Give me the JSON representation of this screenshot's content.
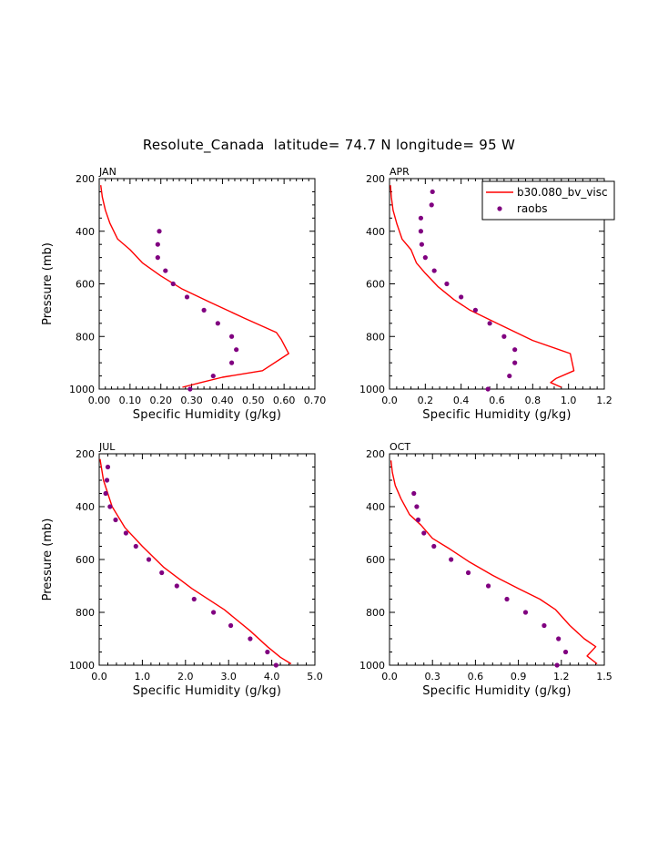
{
  "title": "Resolute_Canada  latitude= 74.7 N longitude= 95 W",
  "colors": {
    "model": "#ff0000",
    "obs": "#800080",
    "axis": "#000000"
  },
  "chart_data": [
    {
      "type": "line",
      "panel": "JAN",
      "xlabel": "Specific Humidity (g/kg)",
      "ylabel": "Pressure (mb)",
      "xlim": [
        0.0,
        0.7
      ],
      "ylim": [
        200,
        1000
      ],
      "xticks": [
        0.0,
        0.1,
        0.2,
        0.3,
        0.4,
        0.5,
        0.6,
        0.7
      ],
      "xtick_labels": [
        "0.00",
        "0.10",
        "0.20",
        "0.30",
        "0.40",
        "0.50",
        "0.60",
        "0.70"
      ],
      "yticks": [
        200,
        400,
        600,
        800,
        1000
      ],
      "ytick_labels": [
        "200",
        "400",
        "600",
        "800",
        "1000"
      ],
      "model": {
        "name": "b30.080_bv_visc",
        "points": [
          [
            0.005,
            225
          ],
          [
            0.01,
            270
          ],
          [
            0.02,
            320
          ],
          [
            0.035,
            370
          ],
          [
            0.06,
            430
          ],
          [
            0.1,
            470
          ],
          [
            0.14,
            520
          ],
          [
            0.2,
            570
          ],
          [
            0.27,
            620
          ],
          [
            0.36,
            670
          ],
          [
            0.47,
            730
          ],
          [
            0.575,
            785
          ],
          [
            0.59,
            810
          ],
          [
            0.615,
            865
          ],
          [
            0.53,
            930
          ],
          [
            0.4,
            955
          ],
          [
            0.33,
            975
          ],
          [
            0.27,
            993
          ]
        ]
      },
      "obs": {
        "name": "raobs",
        "points": [
          [
            0.195,
            400
          ],
          [
            0.19,
            450
          ],
          [
            0.19,
            500
          ],
          [
            0.215,
            550
          ],
          [
            0.24,
            600
          ],
          [
            0.285,
            650
          ],
          [
            0.34,
            700
          ],
          [
            0.385,
            750
          ],
          [
            0.43,
            800
          ],
          [
            0.445,
            850
          ],
          [
            0.43,
            900
          ],
          [
            0.37,
            950
          ],
          [
            0.295,
            1000
          ]
        ]
      }
    },
    {
      "type": "line",
      "panel": "APR",
      "xlabel": "Specific Humidity (g/kg)",
      "ylabel": "",
      "xlim": [
        0.0,
        1.2
      ],
      "ylim": [
        200,
        1000
      ],
      "xticks": [
        0.0,
        0.2,
        0.4,
        0.6,
        0.8,
        1.0,
        1.2
      ],
      "xtick_labels": [
        "0.0",
        "0.2",
        "0.4",
        "0.6",
        "0.8",
        "1.0",
        "1.2"
      ],
      "yticks": [
        200,
        400,
        600,
        800,
        1000
      ],
      "ytick_labels": [
        "200",
        "400",
        "600",
        "800",
        "1000"
      ],
      "model": {
        "name": "b30.080_bv_visc",
        "points": [
          [
            0.005,
            225
          ],
          [
            0.01,
            270
          ],
          [
            0.02,
            320
          ],
          [
            0.04,
            370
          ],
          [
            0.07,
            430
          ],
          [
            0.12,
            470
          ],
          [
            0.15,
            520
          ],
          [
            0.2,
            560
          ],
          [
            0.27,
            610
          ],
          [
            0.36,
            660
          ],
          [
            0.45,
            700
          ],
          [
            0.6,
            750
          ],
          [
            0.8,
            815
          ],
          [
            1.01,
            865
          ],
          [
            1.03,
            930
          ],
          [
            0.93,
            960
          ],
          [
            0.9,
            975
          ],
          [
            0.96,
            993
          ]
        ]
      },
      "obs": {
        "name": "raobs",
        "points": [
          [
            0.24,
            250
          ],
          [
            0.235,
            300
          ],
          [
            0.175,
            350
          ],
          [
            0.175,
            400
          ],
          [
            0.18,
            450
          ],
          [
            0.2,
            500
          ],
          [
            0.25,
            550
          ],
          [
            0.32,
            600
          ],
          [
            0.4,
            650
          ],
          [
            0.48,
            700
          ],
          [
            0.56,
            750
          ],
          [
            0.64,
            800
          ],
          [
            0.7,
            850
          ],
          [
            0.7,
            900
          ],
          [
            0.67,
            950
          ],
          [
            0.55,
            1000
          ]
        ]
      }
    },
    {
      "type": "line",
      "panel": "JUL",
      "xlabel": "Specific Humidity (g/kg)",
      "ylabel": "Pressure (mb)",
      "xlim": [
        0.0,
        5.0
      ],
      "ylim": [
        200,
        1000
      ],
      "xticks": [
        0.0,
        1.0,
        2.0,
        3.0,
        4.0,
        5.0
      ],
      "xtick_labels": [
        "0.0",
        "1.0",
        "2.0",
        "3.0",
        "4.0",
        "5.0"
      ],
      "yticks": [
        200,
        400,
        600,
        800,
        1000
      ],
      "ytick_labels": [
        "200",
        "400",
        "600",
        "800",
        "1000"
      ],
      "model": {
        "name": "b30.080_bv_visc",
        "points": [
          [
            0.02,
            220
          ],
          [
            0.1,
            300
          ],
          [
            0.3,
            400
          ],
          [
            0.6,
            480
          ],
          [
            1.0,
            550
          ],
          [
            1.5,
            630
          ],
          [
            2.15,
            710
          ],
          [
            2.9,
            790
          ],
          [
            3.5,
            870
          ],
          [
            3.9,
            930
          ],
          [
            4.2,
            970
          ],
          [
            4.45,
            995
          ]
        ]
      },
      "obs": {
        "name": "raobs",
        "points": [
          [
            0.2,
            250
          ],
          [
            0.18,
            300
          ],
          [
            0.15,
            350
          ],
          [
            0.25,
            400
          ],
          [
            0.38,
            450
          ],
          [
            0.62,
            500
          ],
          [
            0.85,
            550
          ],
          [
            1.15,
            600
          ],
          [
            1.45,
            650
          ],
          [
            1.8,
            700
          ],
          [
            2.2,
            750
          ],
          [
            2.65,
            800
          ],
          [
            3.05,
            850
          ],
          [
            3.5,
            900
          ],
          [
            3.9,
            950
          ],
          [
            4.1,
            1000
          ]
        ]
      }
    },
    {
      "type": "line",
      "panel": "OCT",
      "xlabel": "Specific Humidity (g/kg)",
      "ylabel": "",
      "xlim": [
        0.0,
        1.5
      ],
      "ylim": [
        200,
        1000
      ],
      "xticks": [
        0.0,
        0.3,
        0.6,
        0.9,
        1.2,
        1.5
      ],
      "xtick_labels": [
        "0.0",
        "0.3",
        "0.6",
        "0.9",
        "1.2",
        "1.5"
      ],
      "yticks": [
        200,
        400,
        600,
        800,
        1000
      ],
      "ytick_labels": [
        "200",
        "400",
        "600",
        "800",
        "1000"
      ],
      "model": {
        "name": "b30.080_bv_visc",
        "points": [
          [
            0.01,
            225
          ],
          [
            0.02,
            270
          ],
          [
            0.04,
            320
          ],
          [
            0.08,
            370
          ],
          [
            0.14,
            430
          ],
          [
            0.22,
            470
          ],
          [
            0.3,
            520
          ],
          [
            0.42,
            560
          ],
          [
            0.56,
            610
          ],
          [
            0.72,
            660
          ],
          [
            0.9,
            710
          ],
          [
            1.05,
            750
          ],
          [
            1.16,
            790
          ],
          [
            1.26,
            850
          ],
          [
            1.36,
            900
          ],
          [
            1.44,
            930
          ],
          [
            1.38,
            965
          ],
          [
            1.45,
            995
          ]
        ]
      },
      "obs": {
        "name": "raobs",
        "points": [
          [
            0.17,
            350
          ],
          [
            0.19,
            400
          ],
          [
            0.2,
            450
          ],
          [
            0.24,
            500
          ],
          [
            0.31,
            550
          ],
          [
            0.43,
            600
          ],
          [
            0.55,
            650
          ],
          [
            0.69,
            700
          ],
          [
            0.82,
            750
          ],
          [
            0.95,
            800
          ],
          [
            1.08,
            850
          ],
          [
            1.18,
            900
          ],
          [
            1.23,
            950
          ],
          [
            1.17,
            1000
          ]
        ]
      }
    }
  ],
  "legend": {
    "panel": "APR",
    "position": "top-right",
    "entries": [
      "b30.080_bv_visc",
      "raobs"
    ]
  }
}
